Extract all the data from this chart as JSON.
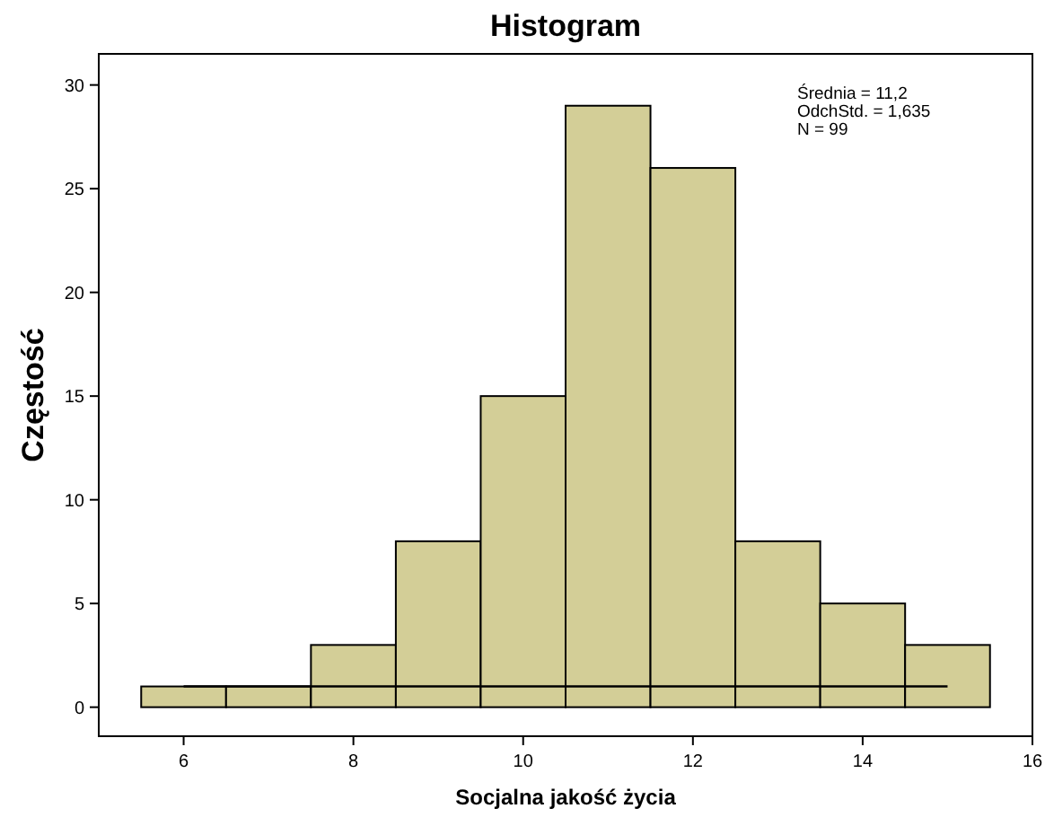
{
  "chart_data": {
    "type": "histogram",
    "title": "Histogram",
    "xlabel": "Socjalna jakość życia",
    "ylabel": "Częstość",
    "bins": [
      5.5,
      6.5,
      7.5,
      8.5,
      9.5,
      10.5,
      11.5,
      12.5,
      13.5,
      14.5,
      15.5
    ],
    "values": [
      1,
      1,
      3,
      8,
      15,
      29,
      26,
      8,
      5,
      3
    ],
    "color": "#d3ce97",
    "series": [
      {
        "type": "line",
        "x": [
          6,
          15
        ],
        "values": [
          1,
          1
        ],
        "color": "#000000"
      }
    ],
    "xlim": [
      5,
      16
    ],
    "xticks": [
      6,
      8,
      10,
      12,
      14,
      16
    ],
    "ylim": [
      -1.4,
      31.5
    ],
    "yticks": [
      0,
      5,
      10,
      15,
      20,
      25,
      30
    ],
    "annotations": [
      "Średnia = 11,2",
      "OdchStd. = 1,635",
      "N = 99"
    ]
  }
}
